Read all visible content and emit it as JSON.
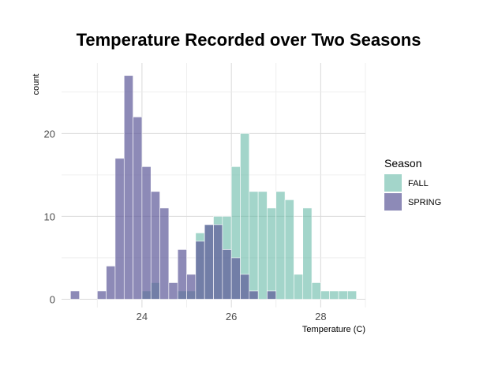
{
  "chart_data": {
    "type": "histogram",
    "title": "Temperature Recorded over Two Seasons",
    "xlabel": "Temperature (C)",
    "ylabel": "count",
    "xlim": [
      22.2,
      29.0
    ],
    "ylim": [
      -1.0,
      28.5
    ],
    "x_ticks": [
      24,
      26,
      28
    ],
    "y_ticks": [
      0,
      10,
      20
    ],
    "bin_width": 0.2,
    "grid": true,
    "legend": {
      "title": "Season",
      "position": "right"
    },
    "series": [
      {
        "name": "FALL",
        "color": "#66b9a6",
        "bins": [
          [
            23.9,
            0
          ],
          [
            24.1,
            1
          ],
          [
            24.3,
            2
          ],
          [
            24.5,
            0
          ],
          [
            24.7,
            0
          ],
          [
            24.9,
            1
          ],
          [
            25.1,
            1
          ],
          [
            25.3,
            8
          ],
          [
            25.5,
            9
          ],
          [
            25.7,
            10
          ],
          [
            25.9,
            10
          ],
          [
            26.1,
            16
          ],
          [
            26.3,
            20
          ],
          [
            26.5,
            13
          ],
          [
            26.7,
            13
          ],
          [
            26.9,
            11
          ],
          [
            27.1,
            13
          ],
          [
            27.3,
            12
          ],
          [
            27.5,
            3
          ],
          [
            27.7,
            11
          ],
          [
            27.9,
            2
          ],
          [
            28.1,
            1
          ],
          [
            28.3,
            1
          ],
          [
            28.5,
            1
          ],
          [
            28.7,
            1
          ]
        ]
      },
      {
        "name": "SPRING",
        "color": "#5d5999",
        "bins": [
          [
            22.5,
            1
          ],
          [
            23.1,
            1
          ],
          [
            23.3,
            4
          ],
          [
            23.5,
            17
          ],
          [
            23.7,
            27
          ],
          [
            23.9,
            22
          ],
          [
            24.1,
            16
          ],
          [
            24.3,
            13
          ],
          [
            24.5,
            11
          ],
          [
            24.7,
            2
          ],
          [
            24.9,
            6
          ],
          [
            25.1,
            3
          ],
          [
            25.3,
            7
          ],
          [
            25.5,
            9
          ],
          [
            25.7,
            9
          ],
          [
            25.9,
            6
          ],
          [
            26.1,
            5
          ],
          [
            26.3,
            3
          ],
          [
            26.5,
            1
          ],
          [
            26.9,
            1
          ]
        ]
      }
    ]
  }
}
